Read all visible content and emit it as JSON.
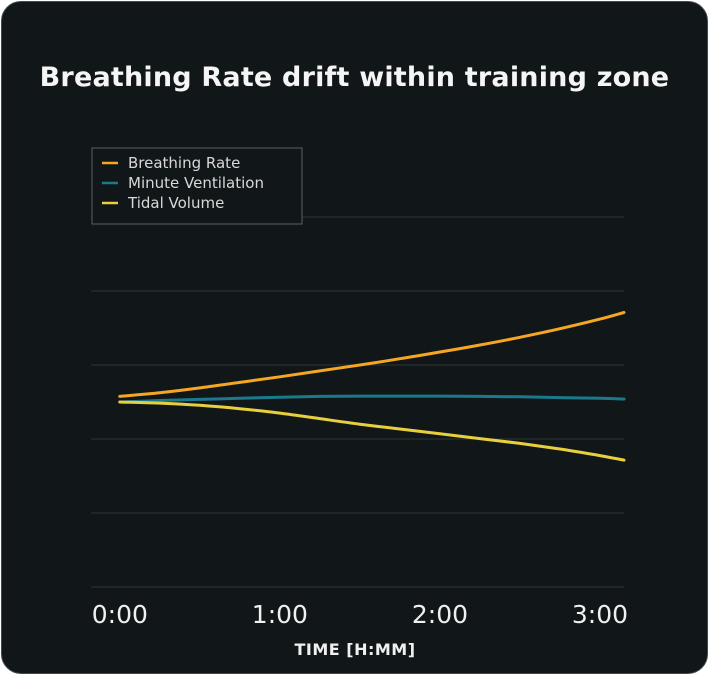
{
  "chart_data": {
    "type": "line",
    "title": "Breathing Rate drift within training zone",
    "xlabel": "TIME [H:MM]",
    "ylabel": "",
    "x": [
      0,
      0.25,
      0.5,
      0.75,
      1.0,
      1.25,
      1.5,
      1.75,
      2.0,
      2.25,
      2.5,
      2.75,
      3.0,
      3.15
    ],
    "xticks": [
      0,
      1,
      2,
      3
    ],
    "xtick_labels": [
      "0:00",
      "1:00",
      "2:00",
      "3:00"
    ],
    "xlim": [
      -0.18,
      3.15
    ],
    "ylim": [
      -5,
      5
    ],
    "grid": true,
    "legend_position": "top-left",
    "series": [
      {
        "name": "Breathing Rate",
        "color": "#f5a623",
        "values": [
          0.15,
          0.25,
          0.38,
          0.53,
          0.68,
          0.84,
          1.0,
          1.17,
          1.35,
          1.54,
          1.75,
          1.98,
          2.24,
          2.42
        ]
      },
      {
        "name": "Minute Ventilation",
        "color": "#1a7a8c",
        "values": [
          0.0,
          0.04,
          0.07,
          0.1,
          0.13,
          0.15,
          0.16,
          0.16,
          0.16,
          0.15,
          0.14,
          0.12,
          0.1,
          0.08
        ]
      },
      {
        "name": "Tidal Volume",
        "color": "#e8d03c",
        "values": [
          0.0,
          -0.03,
          -0.09,
          -0.18,
          -0.3,
          -0.45,
          -0.6,
          -0.73,
          -0.86,
          -0.99,
          -1.12,
          -1.27,
          -1.45,
          -1.57
        ]
      }
    ]
  }
}
